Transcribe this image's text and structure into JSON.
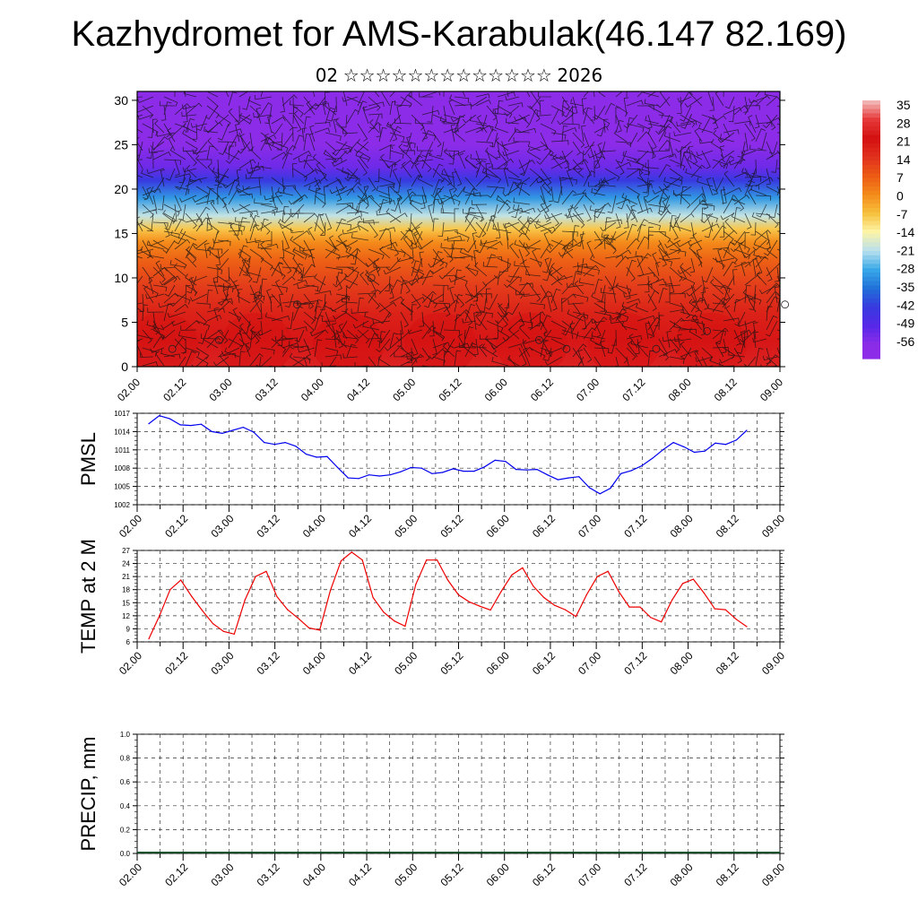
{
  "header": {
    "title": "Kazhydromet for AMS-Karabulak(46.147 82.169)",
    "subtitle_day": "02",
    "subtitle_month": "☆☆☆☆☆☆☆☆☆☆☆☆☆",
    "subtitle_year": "2026"
  },
  "colors": {
    "pmsl_line": "#0000ee",
    "temp_line": "#ee0000",
    "grid": "#333333"
  },
  "chart_data": [
    {
      "type": "heatmap",
      "name": "vertical-profile",
      "title": "",
      "x_labels": [
        "02.00",
        "02.12",
        "03.00",
        "03.12",
        "04.00",
        "04.12",
        "05.00",
        "05.12",
        "06.00",
        "06.12",
        "07.00",
        "07.12",
        "08.00",
        "08.12",
        "09.00"
      ],
      "y_ticks": [
        0,
        5,
        10,
        15,
        20,
        25,
        30
      ],
      "ylim": [
        0,
        31
      ],
      "description": "Temperature (°C) by height level with wind barbs",
      "colorbar_labels": [
        "35",
        "28",
        "21",
        "14",
        "7",
        "0",
        "-7",
        "-14",
        "-21",
        "-28",
        "-35",
        "-42",
        "-49",
        "-56"
      ],
      "colorbar_colors": [
        "#f4c0c0",
        "#e63a3a",
        "#d41010",
        "#e0301e",
        "#ec5a14",
        "#f48a1a",
        "#f7c03c",
        "#fdf4a8",
        "#b8e0ee",
        "#38a8e8",
        "#2070d8",
        "#3838e0",
        "#5828e8",
        "#8c2ce8"
      ],
      "profile": [
        {
          "level": 0,
          "temp": 24
        },
        {
          "level": 3,
          "temp": 22
        },
        {
          "level": 6,
          "temp": 17
        },
        {
          "level": 9,
          "temp": 12
        },
        {
          "level": 12,
          "temp": 6
        },
        {
          "level": 14,
          "temp": 0
        },
        {
          "level": 15.5,
          "temp": -8
        },
        {
          "level": 17,
          "temp": -20
        },
        {
          "level": 19,
          "temp": -30
        },
        {
          "level": 21,
          "temp": -42
        },
        {
          "level": 22.5,
          "temp": -52
        },
        {
          "level": 25,
          "temp": -58
        },
        {
          "level": 31,
          "temp": -60
        }
      ]
    },
    {
      "type": "line",
      "name": "pmsl",
      "ylabel": "PMSL",
      "x_labels": [
        "02.00",
        "02.12",
        "03.00",
        "03.12",
        "04.00",
        "04.12",
        "05.00",
        "05.12",
        "06.00",
        "06.12",
        "07.00",
        "07.12",
        "08.00",
        "08.12",
        "09.00"
      ],
      "y_ticks": [
        1002,
        1005,
        1008,
        1011,
        1014,
        1017
      ],
      "ylim": [
        1002,
        1017
      ],
      "values": [
        1015.3,
        1016.6,
        1016.1,
        1015.1,
        1015,
        1015.2,
        1014,
        1013.7,
        1014.2,
        1014.7,
        1013.9,
        1012.2,
        1011.9,
        1012.2,
        1011.6,
        1010.3,
        1009.8,
        1009.9,
        1008.1,
        1006.4,
        1006.3,
        1006.9,
        1006.7,
        1006.9,
        1007.4,
        1008.1,
        1008,
        1007.1,
        1007.3,
        1007.9,
        1007.5,
        1007.5,
        1008.2,
        1009.3,
        1009.1,
        1007.8,
        1007.7,
        1007.8,
        1006.9,
        1006.1,
        1006.4,
        1006.6,
        1004.8,
        1003.8,
        1004.7,
        1007.1,
        1007.6,
        1008.4,
        1009.6,
        1011,
        1012.2,
        1011.5,
        1010.6,
        1010.8,
        1012.1,
        1011.9,
        1012.6,
        1014.2
      ]
    },
    {
      "type": "line",
      "name": "temp-2m",
      "ylabel": "TEMP at 2 M",
      "x_labels": [
        "02.00",
        "02.12",
        "03.00",
        "03.12",
        "04.00",
        "04.12",
        "05.00",
        "05.12",
        "06.00",
        "06.12",
        "07.00",
        "07.12",
        "08.00",
        "08.12",
        "09.00"
      ],
      "y_ticks": [
        6,
        9,
        12,
        15,
        18,
        21,
        24,
        27
      ],
      "ylim": [
        6,
        27
      ],
      "values": [
        6.7,
        12,
        18,
        20.2,
        16.5,
        13.2,
        10.2,
        8.4,
        7.8,
        15.6,
        21,
        22.2,
        16.4,
        13.4,
        11.4,
        9.2,
        8.7,
        17.8,
        24.6,
        26.6,
        24.8,
        16.2,
        12.8,
        10.8,
        9.6,
        19.2,
        24.8,
        24.8,
        20.2,
        16.8,
        15.2,
        14.2,
        13.3,
        17.6,
        21.4,
        23,
        18.8,
        16.2,
        14.4,
        13.4,
        11.8,
        16.8,
        21,
        22.2,
        17.6,
        14,
        14,
        11.6,
        10.6,
        15.6,
        19.4,
        20.4,
        17.2,
        13.6,
        13.4,
        11.2,
        9.5
      ]
    },
    {
      "type": "line",
      "name": "precip",
      "ylabel": "PRECIP, mm",
      "x_labels": [
        "02.00",
        "02.12",
        "03.00",
        "03.12",
        "04.00",
        "04.12",
        "05.00",
        "05.12",
        "06.00",
        "06.12",
        "07.00",
        "07.12",
        "08.00",
        "08.12",
        "09.00"
      ],
      "y_ticks": [
        "0.0",
        "0.2",
        "0.4",
        "0.6",
        "0.8",
        "1.0"
      ],
      "ylim": [
        0,
        1
      ],
      "values": []
    }
  ]
}
